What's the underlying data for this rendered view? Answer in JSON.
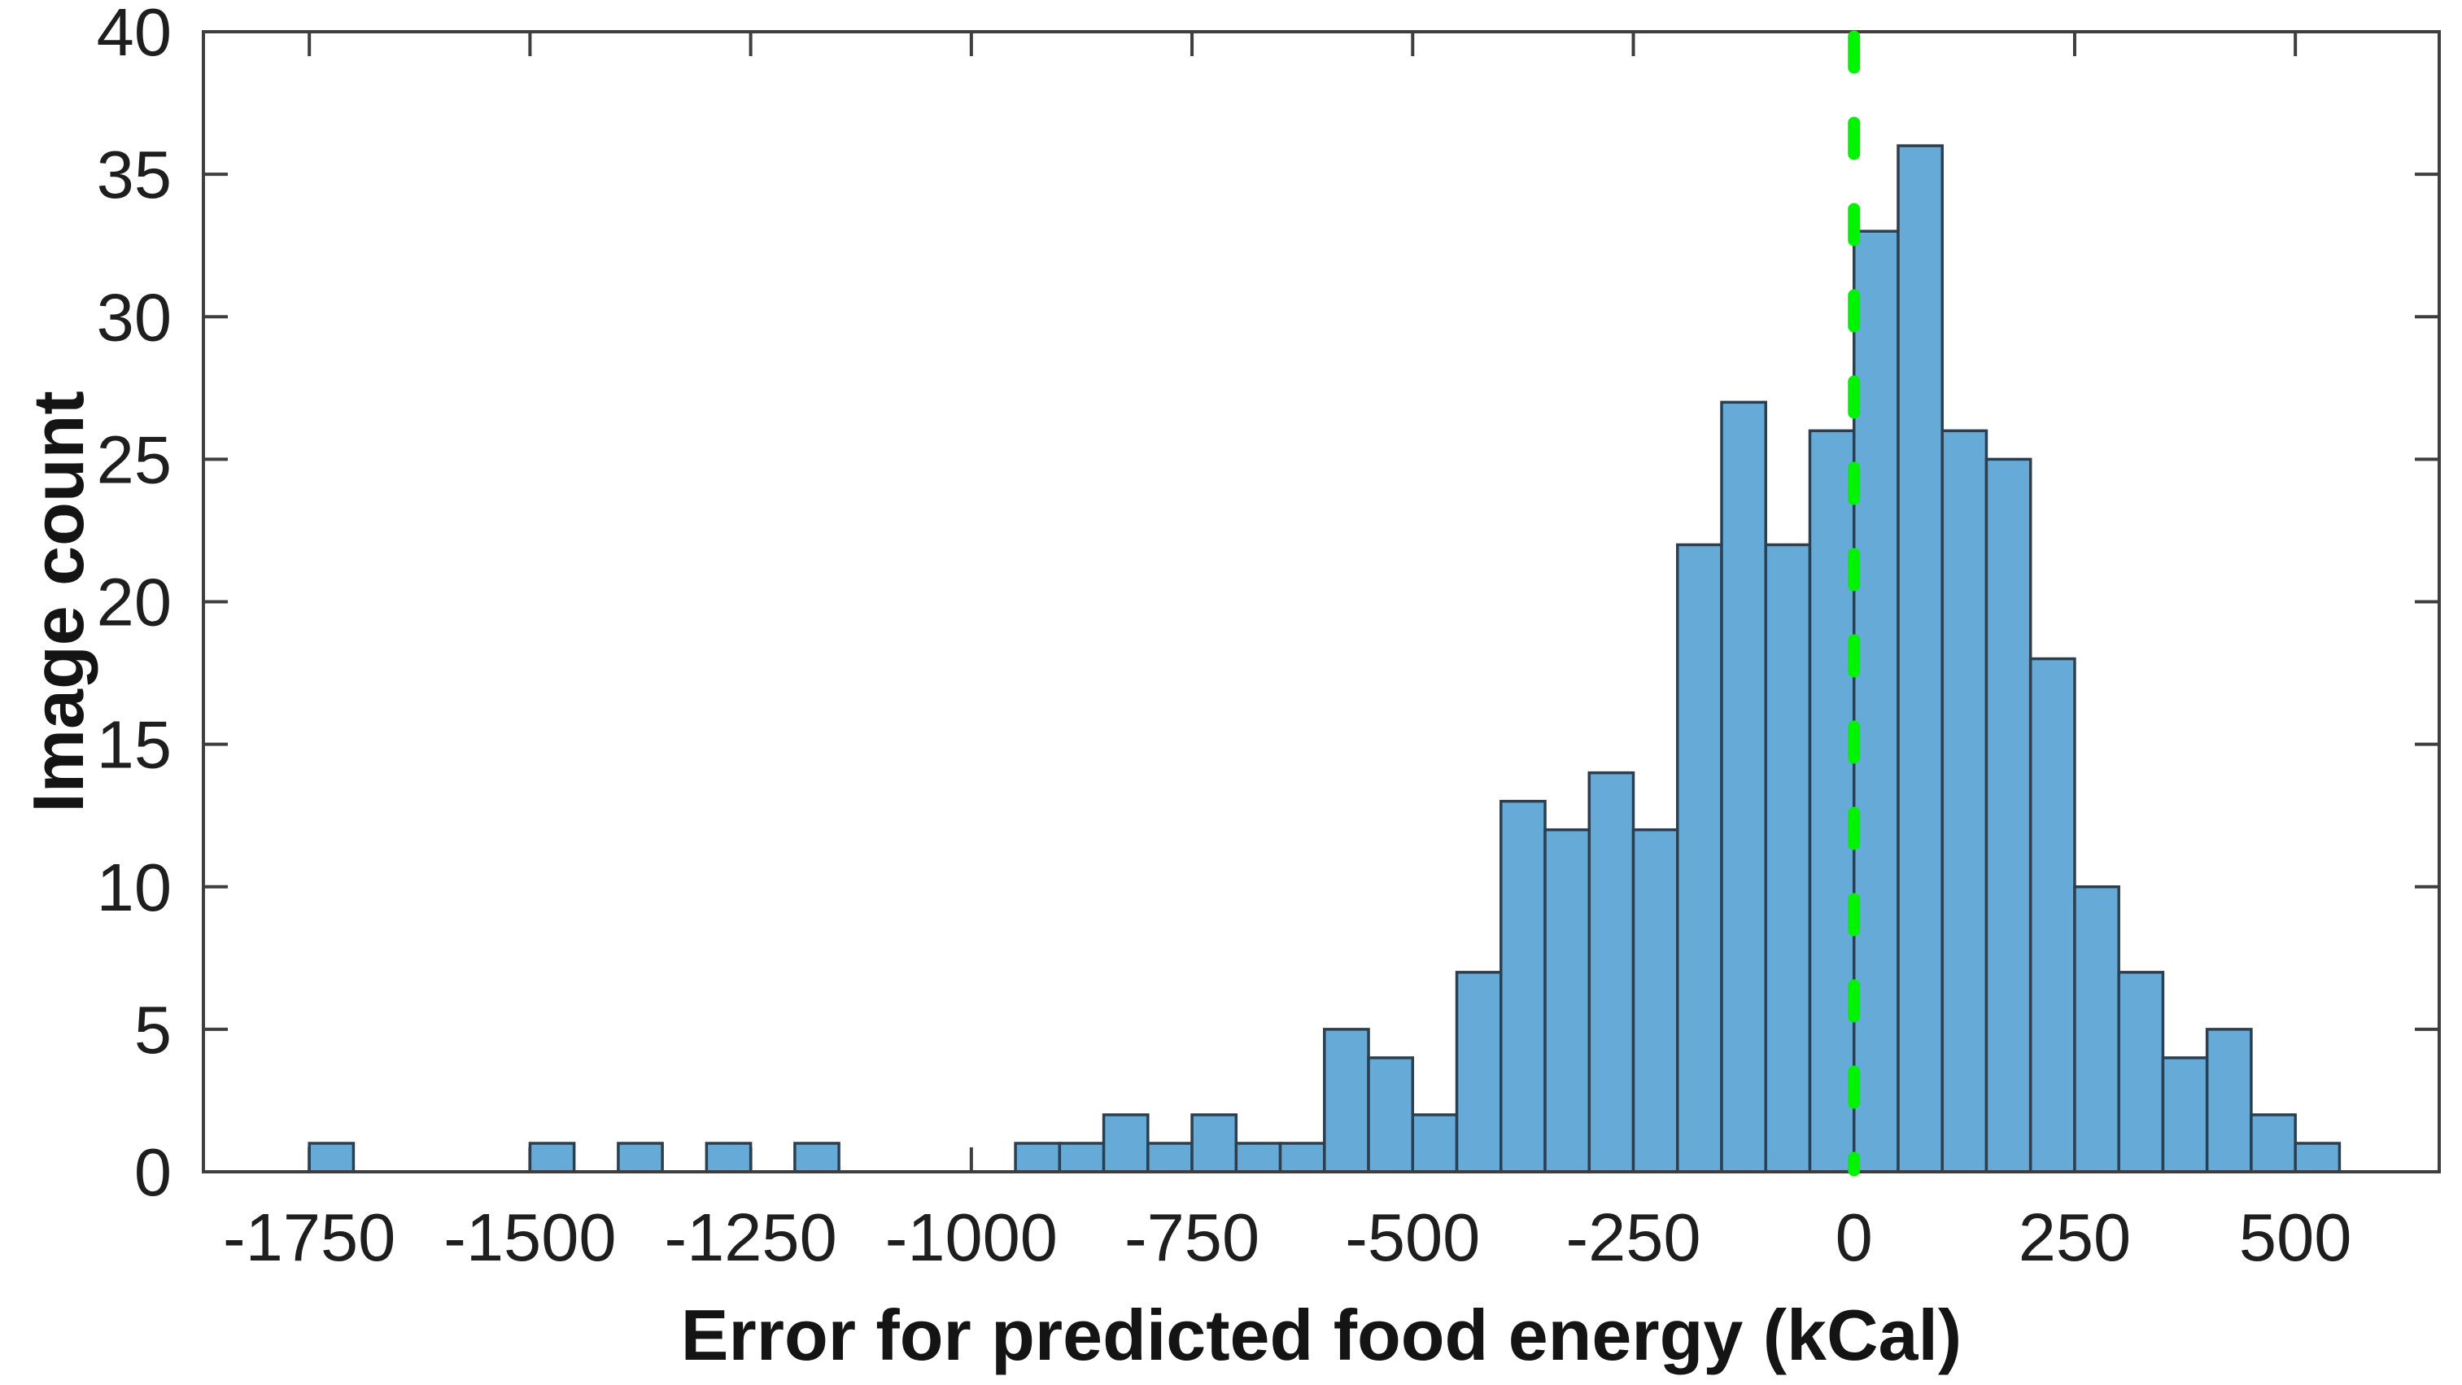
{
  "chart_data": {
    "type": "bar",
    "subtype": "histogram",
    "title": "",
    "xlabel": "Error for predicted food energy (kCal)",
    "ylabel": "Image count",
    "bin_width": 50,
    "bin_left_edges": [
      -1750,
      -1700,
      -1650,
      -1600,
      -1550,
      -1500,
      -1450,
      -1400,
      -1350,
      -1300,
      -1250,
      -1200,
      -1150,
      -1100,
      -1050,
      -1000,
      -950,
      -900,
      -850,
      -800,
      -750,
      -700,
      -650,
      -600,
      -550,
      -500,
      -450,
      -400,
      -350,
      -300,
      -250,
      -200,
      -150,
      -100,
      -50,
      0,
      50,
      100,
      150,
      200,
      250,
      300,
      350,
      400,
      450,
      500
    ],
    "counts": [
      1,
      0,
      0,
      0,
      0,
      1,
      0,
      1,
      0,
      1,
      0,
      1,
      0,
      0,
      0,
      0,
      1,
      1,
      2,
      1,
      2,
      1,
      1,
      5,
      4,
      2,
      7,
      13,
      12,
      14,
      12,
      22,
      27,
      22,
      26,
      33,
      36,
      26,
      25,
      18,
      10,
      7,
      4,
      5,
      2,
      1
    ],
    "x_ticks": [
      -1750,
      -1500,
      -1250,
      -1000,
      -750,
      -500,
      -250,
      0,
      250,
      500
    ],
    "y_ticks": [
      0,
      5,
      10,
      15,
      20,
      25,
      30,
      35,
      40
    ],
    "xlim": [
      -1870,
      663
    ],
    "ylim": [
      0,
      40
    ],
    "grid": false,
    "legend": false,
    "reference_line": {
      "x": 0,
      "style": "dashed",
      "orientation": "vertical"
    }
  },
  "colors": {
    "background": "#FFFFFF",
    "bar_fill": "#66AAD7",
    "bar_edge": "#2C3F50",
    "axis_line": "#3E3E3E",
    "tick_text": "#1E1E1E",
    "zero_line_green": "#00F400"
  }
}
